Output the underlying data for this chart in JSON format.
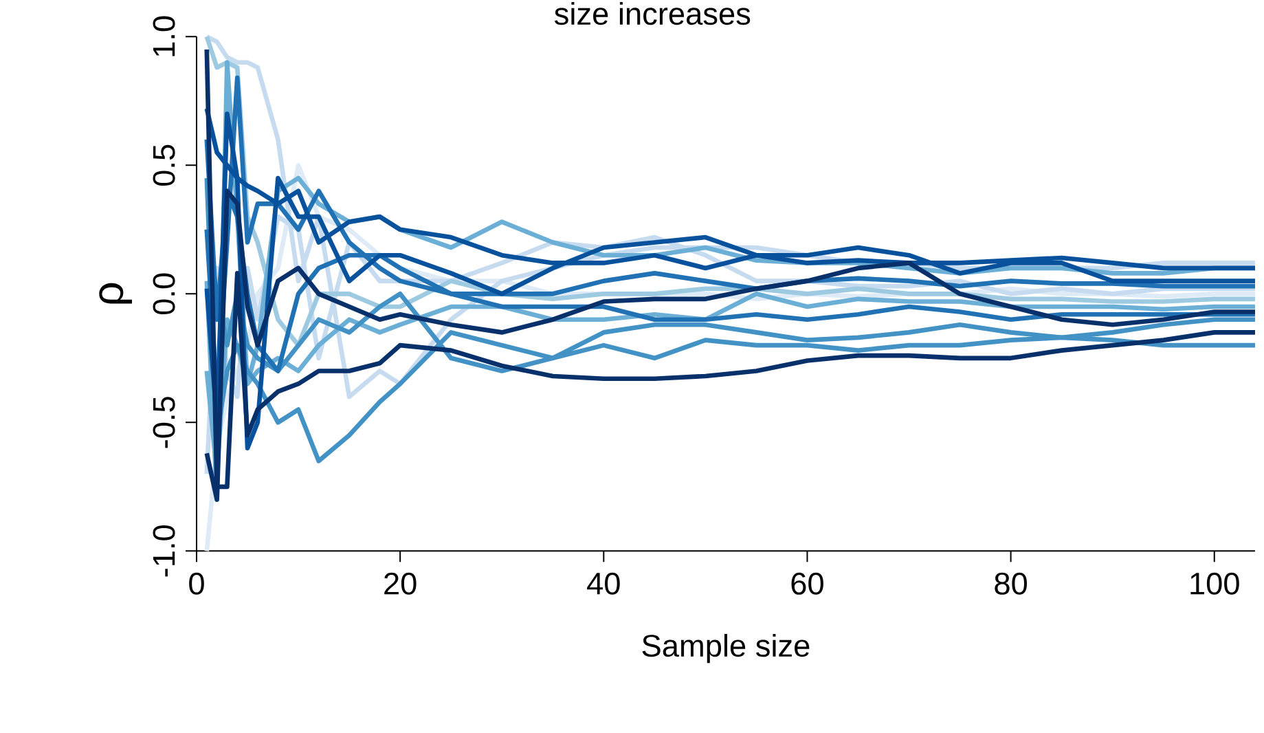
{
  "chart_data": {
    "type": "line",
    "title": "size increases",
    "xlabel": "Sample size",
    "ylabel": "ρ",
    "x": [
      1,
      2,
      3,
      4,
      5,
      6,
      8,
      10,
      12,
      15,
      18,
      20,
      25,
      30,
      35,
      40,
      45,
      50,
      55,
      60,
      65,
      70,
      75,
      80,
      85,
      90,
      95,
      100,
      104
    ],
    "xlim": [
      0,
      104
    ],
    "xticks": [
      0,
      20,
      40,
      60,
      80,
      100
    ],
    "ylim": [
      -1,
      1
    ],
    "yticks": [
      {
        "value": -1,
        "label": "-1.0"
      },
      {
        "value": -0.5,
        "label": "-0.5"
      },
      {
        "value": 0,
        "label": "0.0"
      },
      {
        "value": 0.5,
        "label": "0.5"
      },
      {
        "value": 1,
        "label": "1.0"
      }
    ],
    "series": [
      {
        "color": "#deebf7",
        "values": [
          -1.0,
          -0.6,
          -0.4,
          -0.3,
          -0.2,
          0.0,
          0.1,
          0.5,
          0.3,
          0.25,
          0.15,
          0.1,
          0.05,
          0.05,
          0.0,
          0.0,
          0.0,
          0.0,
          -0.02,
          0.0,
          -0.01,
          0.0,
          0.0,
          0.02,
          0.0,
          0.0,
          -0.01,
          0.0,
          0.0
        ]
      },
      {
        "color": "#c6dbef",
        "values": [
          1.0,
          0.98,
          0.92,
          0.9,
          0.9,
          0.88,
          0.6,
          0.05,
          0.3,
          -0.4,
          -0.3,
          -0.35,
          -0.1,
          0.05,
          0.1,
          0.15,
          0.18,
          0.18,
          0.18,
          0.15,
          0.12,
          0.12,
          0.1,
          0.1,
          0.1,
          0.1,
          0.12,
          0.12,
          0.12
        ]
      },
      {
        "color": "#c6dbef",
        "values": [
          -0.7,
          0.1,
          -0.3,
          -0.4,
          0.1,
          -0.1,
          0.3,
          0.25,
          -0.25,
          0.2,
          0.05,
          0.05,
          0.05,
          0.12,
          0.2,
          0.18,
          0.22,
          0.15,
          0.05,
          0.05,
          0.03,
          0.03,
          0.05,
          0.0,
          0.02,
          0.0,
          0.02,
          0.02,
          0.02
        ]
      },
      {
        "color": "#9ecae1",
        "values": [
          1.0,
          0.88,
          0.9,
          0.88,
          0.3,
          0.2,
          -0.1,
          -0.2,
          0.0,
          0.0,
          -0.05,
          -0.05,
          0.05,
          0.0,
          -0.02,
          0.0,
          0.0,
          0.02,
          0.02,
          0.0,
          0.02,
          0.0,
          0.0,
          -0.02,
          -0.02,
          -0.03,
          -0.03,
          -0.02,
          -0.02
        ]
      },
      {
        "color": "#6baed6",
        "values": [
          0.05,
          -0.8,
          0.9,
          0.3,
          -0.35,
          -0.2,
          0.4,
          0.45,
          0.35,
          0.28,
          0.3,
          0.25,
          0.18,
          0.28,
          0.2,
          0.15,
          0.15,
          0.18,
          0.13,
          0.12,
          0.12,
          0.1,
          0.08,
          0.1,
          0.1,
          0.08,
          0.08,
          0.1,
          0.1
        ]
      },
      {
        "color": "#6baed6",
        "values": [
          -0.3,
          -0.7,
          -0.1,
          -0.2,
          -0.35,
          -0.3,
          -0.25,
          -0.3,
          -0.2,
          -0.1,
          -0.15,
          -0.12,
          -0.05,
          -0.05,
          -0.1,
          -0.1,
          -0.08,
          -0.1,
          0.0,
          -0.05,
          -0.02,
          -0.03,
          -0.03,
          -0.05,
          -0.05,
          -0.05,
          -0.06,
          -0.05,
          -0.05
        ]
      },
      {
        "color": "#4292c6",
        "values": [
          0.45,
          -0.55,
          -0.3,
          -0.2,
          -0.3,
          -0.35,
          -0.5,
          -0.45,
          -0.65,
          -0.55,
          -0.42,
          -0.35,
          -0.15,
          -0.2,
          -0.25,
          -0.15,
          -0.12,
          -0.12,
          -0.15,
          -0.18,
          -0.17,
          -0.15,
          -0.12,
          -0.15,
          -0.17,
          -0.18,
          -0.2,
          -0.2,
          -0.2
        ]
      },
      {
        "color": "#4292c6",
        "values": [
          0.25,
          0.0,
          -0.2,
          0.0,
          -0.2,
          -0.25,
          -0.3,
          -0.2,
          -0.1,
          -0.15,
          -0.05,
          0.0,
          -0.25,
          -0.3,
          -0.25,
          -0.2,
          -0.25,
          -0.18,
          -0.2,
          -0.2,
          -0.22,
          -0.2,
          -0.2,
          -0.18,
          -0.17,
          -0.15,
          -0.12,
          -0.1,
          -0.1
        ]
      },
      {
        "color": "#2171b5",
        "values": [
          0.6,
          -0.1,
          0.4,
          0.3,
          0.0,
          -0.2,
          -0.3,
          0.0,
          0.1,
          0.15,
          0.15,
          0.1,
          0.0,
          0.0,
          0.0,
          0.05,
          0.08,
          0.05,
          0.02,
          0.05,
          0.06,
          0.05,
          0.03,
          0.05,
          0.04,
          0.04,
          0.03,
          0.03,
          0.03
        ]
      },
      {
        "color": "#2171b5",
        "values": [
          0.25,
          -0.4,
          0.2,
          0.84,
          0.2,
          0.35,
          0.35,
          0.25,
          0.4,
          0.2,
          0.1,
          0.05,
          0.0,
          -0.05,
          -0.05,
          -0.05,
          -0.1,
          -0.1,
          -0.08,
          -0.1,
          -0.08,
          -0.05,
          -0.07,
          -0.1,
          -0.08,
          -0.08,
          -0.08,
          -0.08,
          -0.08
        ]
      },
      {
        "color": "#08519c",
        "values": [
          0.72,
          0.55,
          0.5,
          0.45,
          0.42,
          0.4,
          0.35,
          0.4,
          0.2,
          0.28,
          0.3,
          0.25,
          0.22,
          0.15,
          0.12,
          0.12,
          0.15,
          0.1,
          0.15,
          0.12,
          0.13,
          0.12,
          0.12,
          0.13,
          0.14,
          0.12,
          0.1,
          0.1,
          0.1
        ]
      },
      {
        "color": "#08519c",
        "values": [
          0.02,
          -0.5,
          0.7,
          0.45,
          -0.6,
          -0.5,
          0.45,
          0.3,
          0.3,
          0.05,
          0.15,
          0.15,
          0.08,
          0.0,
          0.1,
          0.18,
          0.2,
          0.22,
          0.15,
          0.15,
          0.18,
          0.15,
          0.08,
          0.12,
          0.12,
          0.05,
          0.05,
          0.05,
          0.05
        ]
      },
      {
        "color": "#08306b",
        "values": [
          -0.62,
          -0.8,
          0.4,
          0.35,
          -0.05,
          -0.2,
          0.05,
          0.1,
          0.0,
          -0.05,
          -0.1,
          -0.08,
          -0.12,
          -0.15,
          -0.1,
          -0.03,
          -0.02,
          -0.02,
          0.02,
          0.05,
          0.1,
          0.12,
          0.0,
          -0.05,
          -0.1,
          -0.12,
          -0.1,
          -0.07,
          -0.07
        ]
      },
      {
        "color": "#08306b",
        "values": [
          0.95,
          -0.75,
          -0.75,
          0.08,
          -0.55,
          -0.45,
          -0.38,
          -0.35,
          -0.3,
          -0.3,
          -0.27,
          -0.2,
          -0.22,
          -0.28,
          -0.32,
          -0.33,
          -0.33,
          -0.32,
          -0.3,
          -0.26,
          -0.24,
          -0.24,
          -0.25,
          -0.25,
          -0.22,
          -0.2,
          -0.18,
          -0.15,
          -0.15
        ]
      }
    ]
  }
}
